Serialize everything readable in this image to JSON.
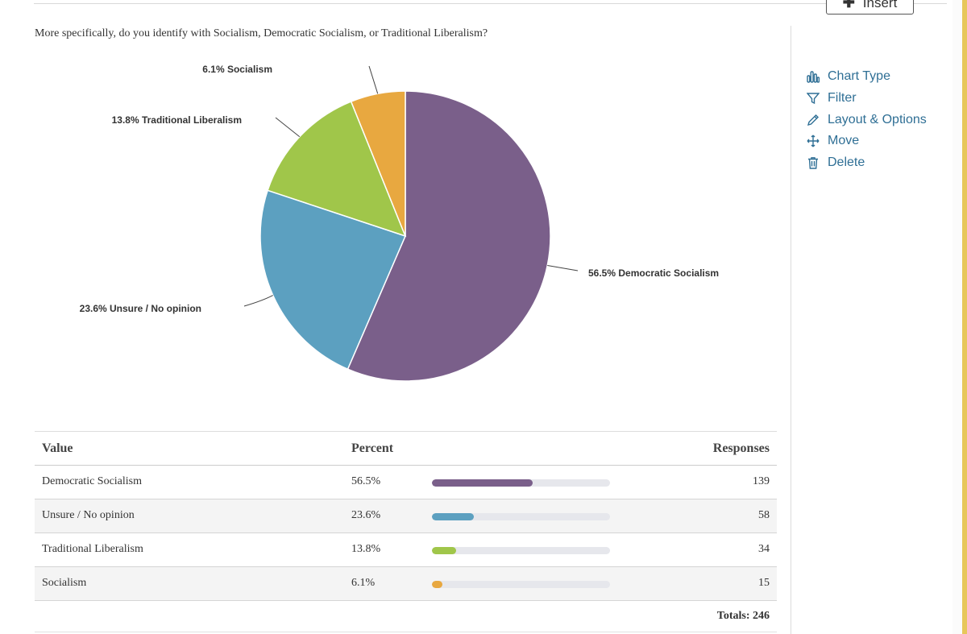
{
  "toolbar": {
    "insert_label": "Insert"
  },
  "question": "More specifically, do you identify with Socialism, Democratic Socialism, or Traditional Liberalism?",
  "side_menu": [
    {
      "label": "Chart Type",
      "icon": "chart-type-icon"
    },
    {
      "label": "Filter",
      "icon": "filter-icon"
    },
    {
      "label": "Layout & Options",
      "icon": "pencil-icon"
    },
    {
      "label": "Move",
      "icon": "move-icon"
    },
    {
      "label": "Delete",
      "icon": "trash-icon"
    }
  ],
  "chart_data": {
    "type": "pie",
    "title": "",
    "slices": [
      {
        "label": "Democratic Socialism",
        "percent": 56.5,
        "color": "#7a5f8a",
        "display": "56.5% Democratic Socialism"
      },
      {
        "label": "Unsure / No opinion",
        "percent": 23.6,
        "color": "#5ca0c0",
        "display": "23.6% Unsure / No opinion"
      },
      {
        "label": "Traditional Liberalism",
        "percent": 13.8,
        "color": "#a0c64a",
        "display": "13.8% Traditional Liberalism"
      },
      {
        "label": "Socialism",
        "percent": 6.1,
        "color": "#e8a840",
        "display": "6.1% Socialism"
      }
    ]
  },
  "table": {
    "headers": {
      "value": "Value",
      "percent": "Percent",
      "responses": "Responses"
    },
    "rows": [
      {
        "value": "Democratic Socialism",
        "percent": "56.5%",
        "fraction": 0.565,
        "responses": "139",
        "color": "#7a5f8a"
      },
      {
        "value": "Unsure / No opinion",
        "percent": "23.6%",
        "fraction": 0.236,
        "responses": "58",
        "color": "#5ca0c0"
      },
      {
        "value": "Traditional Liberalism",
        "percent": "13.8%",
        "fraction": 0.138,
        "responses": "34",
        "color": "#a0c64a"
      },
      {
        "value": "Socialism",
        "percent": "6.1%",
        "fraction": 0.061,
        "responses": "15",
        "color": "#e8a840"
      }
    ],
    "totals": "Totals: 246"
  }
}
